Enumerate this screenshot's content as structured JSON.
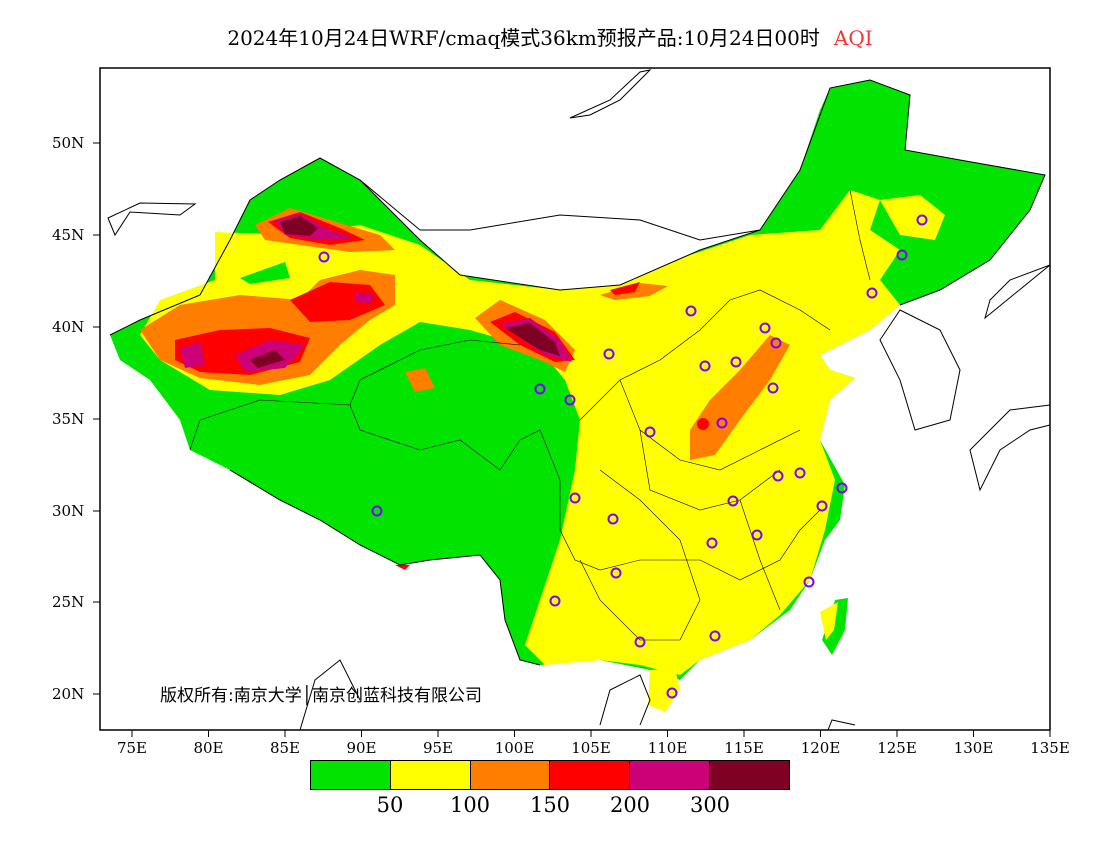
{
  "title": {
    "text": "2024年10月24日WRF/cmaq模式36km预报产品:10月24日00时",
    "product": "AQI",
    "product_color": "#ff3030"
  },
  "axes": {
    "lon_labels": [
      "75E",
      "80E",
      "85E",
      "90E",
      "95E",
      "100E",
      "105E",
      "110E",
      "115E",
      "120E",
      "125E",
      "130E",
      "135E"
    ],
    "lat_labels": [
      "50N",
      "45N",
      "40N",
      "35N",
      "30N",
      "25N",
      "20N"
    ]
  },
  "copyright": "版权所有:南京大学│南京创蓝科技有限公司",
  "legend": {
    "colors": [
      "#00e400",
      "#ffff00",
      "#ff7e00",
      "#ff0000",
      "#cc0077",
      "#7e0023"
    ],
    "breaks": [
      "50",
      "100",
      "150",
      "200",
      "300"
    ]
  }
}
